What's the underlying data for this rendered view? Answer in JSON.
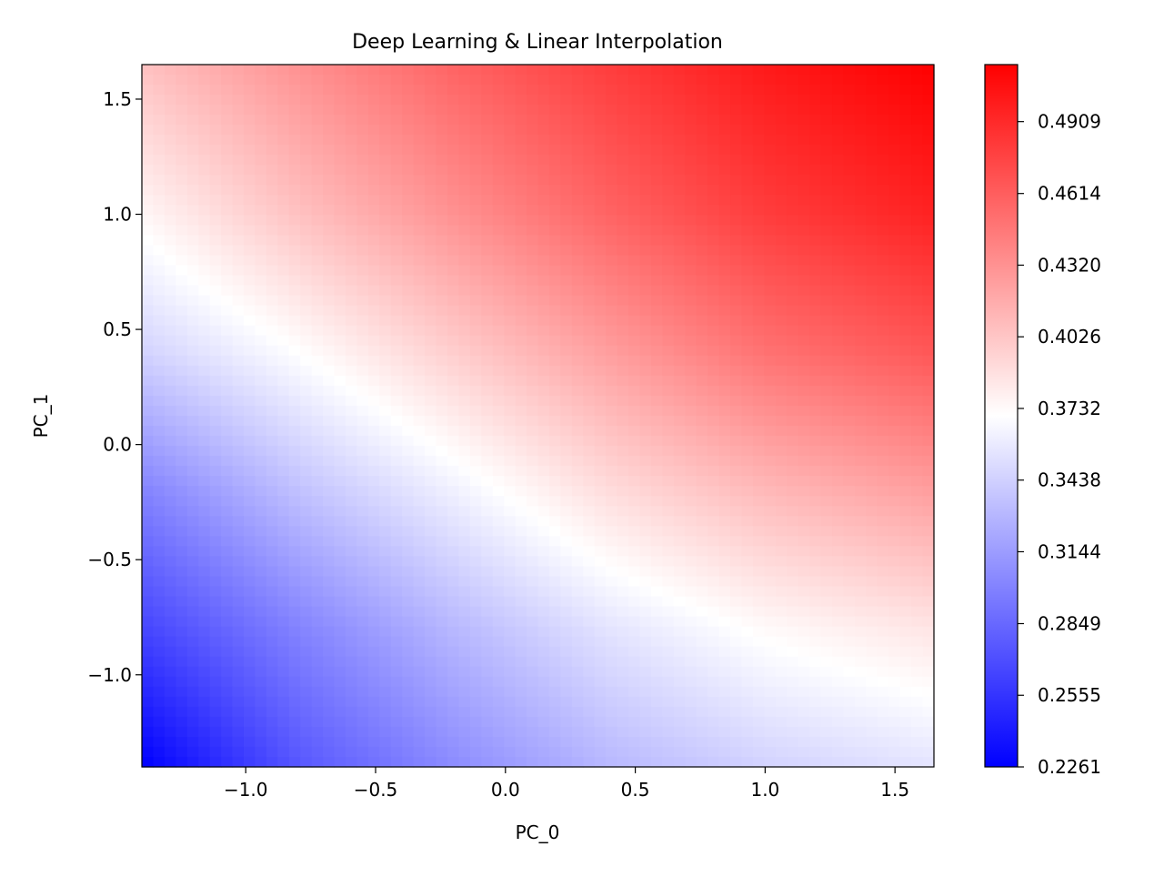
{
  "chart_data": {
    "type": "heatmap",
    "title": "Deep Learning & Linear Interpolation",
    "xlabel": "PC_0",
    "ylabel": "PC_1",
    "xlim": [
      -1.4,
      1.65
    ],
    "ylim": [
      -1.4,
      1.65
    ],
    "xticks": [
      -1.0,
      -0.5,
      0.0,
      0.5,
      1.0,
      1.5
    ],
    "yticks": [
      -1.0,
      -0.5,
      0.0,
      0.5,
      1.0,
      1.5
    ],
    "xtick_labels": [
      "−1.0",
      "−0.5",
      "0.0",
      "0.5",
      "1.0",
      "1.5"
    ],
    "ytick_labels": [
      "−1.0",
      "−0.5",
      "0.0",
      "0.5",
      "1.0",
      "1.5"
    ],
    "colormap": "bwr",
    "colorbar": {
      "min": 0.2261,
      "max": 0.5143,
      "ticks": [
        0.2261,
        0.2555,
        0.2849,
        0.3144,
        0.3438,
        0.3732,
        0.4026,
        0.432,
        0.4614,
        0.4909
      ],
      "tick_labels": [
        "0.2261",
        "0.2555",
        "0.2849",
        "0.3144",
        "0.3438",
        "0.3732",
        "0.4026",
        "0.4320",
        "0.4614",
        "0.4909"
      ]
    },
    "grid_x": [
      -1.4,
      -0.8,
      -0.2,
      0.4,
      1.0,
      1.65
    ],
    "grid_y": [
      -1.4,
      -0.8,
      -0.2,
      0.4,
      1.0,
      1.65
    ],
    "z": [
      [
        0.226,
        0.275,
        0.305,
        0.33,
        0.345,
        0.355
      ],
      [
        0.265,
        0.3,
        0.33,
        0.355,
        0.373,
        0.385
      ],
      [
        0.3,
        0.335,
        0.362,
        0.39,
        0.41,
        0.425
      ],
      [
        0.345,
        0.37,
        0.398,
        0.425,
        0.45,
        0.465
      ],
      [
        0.375,
        0.405,
        0.432,
        0.458,
        0.48,
        0.495
      ],
      [
        0.405,
        0.432,
        0.458,
        0.48,
        0.5,
        0.514
      ]
    ]
  }
}
